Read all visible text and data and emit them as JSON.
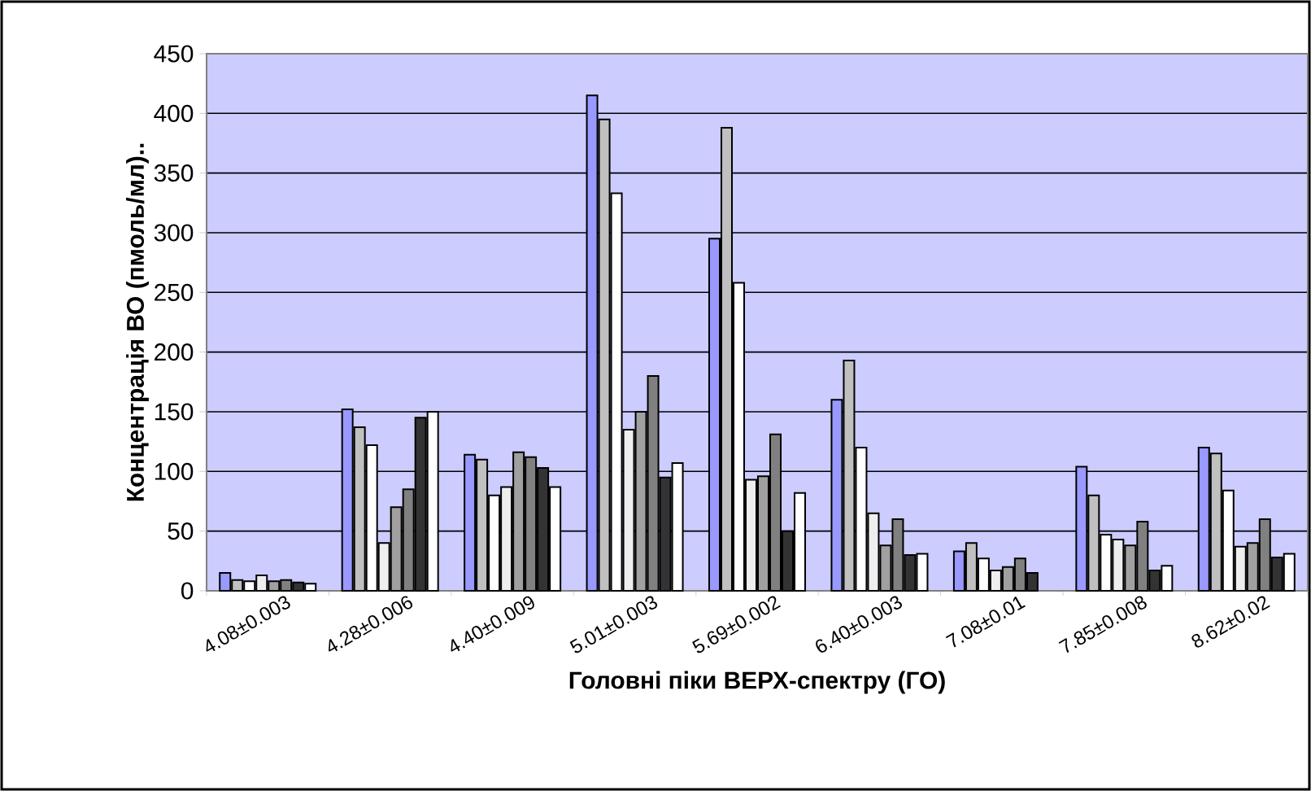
{
  "chart_data": {
    "type": "bar",
    "xlabel": "Головні піки ВЕРХ-спектру (ГО)",
    "ylabel": "Концентрація ВО (пмоль/мл)..",
    "categories": [
      "4.08±0.003",
      "4.28±0.006",
      "4.40±0.009",
      "5.01±0.003",
      "5.69±0.002",
      "6.40±0.003",
      "7.08±0.01",
      "7.85±0.008",
      "8.62±0.02"
    ],
    "series": [
      {
        "color": "#9999ff",
        "values": [
          15,
          152,
          114,
          415,
          295,
          160,
          33,
          104,
          120
        ]
      },
      {
        "color": "#c0c0c0",
        "values": [
          9,
          137,
          110,
          395,
          388,
          193,
          40,
          80,
          115
        ]
      },
      {
        "color": "#ffffff",
        "values": [
          8,
          122,
          80,
          333,
          258,
          120,
          27,
          47,
          84
        ]
      },
      {
        "color": "#eeeeee",
        "values": [
          13,
          40,
          87,
          135,
          93,
          65,
          17,
          43,
          37
        ]
      },
      {
        "color": "#a0a0a0",
        "values": [
          8,
          70,
          116,
          150,
          96,
          38,
          20,
          38,
          40
        ]
      },
      {
        "color": "#808080",
        "values": [
          9,
          85,
          112,
          180,
          131,
          60,
          27,
          58,
          60
        ]
      },
      {
        "color": "#333333",
        "values": [
          7,
          145,
          103,
          95,
          50,
          30,
          15,
          17,
          28
        ]
      },
      {
        "color": "#ffffff",
        "values": [
          6,
          150,
          87,
          107,
          82,
          31,
          null,
          21,
          31
        ]
      }
    ],
    "ylim": [
      0,
      450
    ],
    "yticks": [
      0,
      50,
      100,
      150,
      200,
      250,
      300,
      350,
      400,
      450
    ],
    "grid": "y"
  }
}
